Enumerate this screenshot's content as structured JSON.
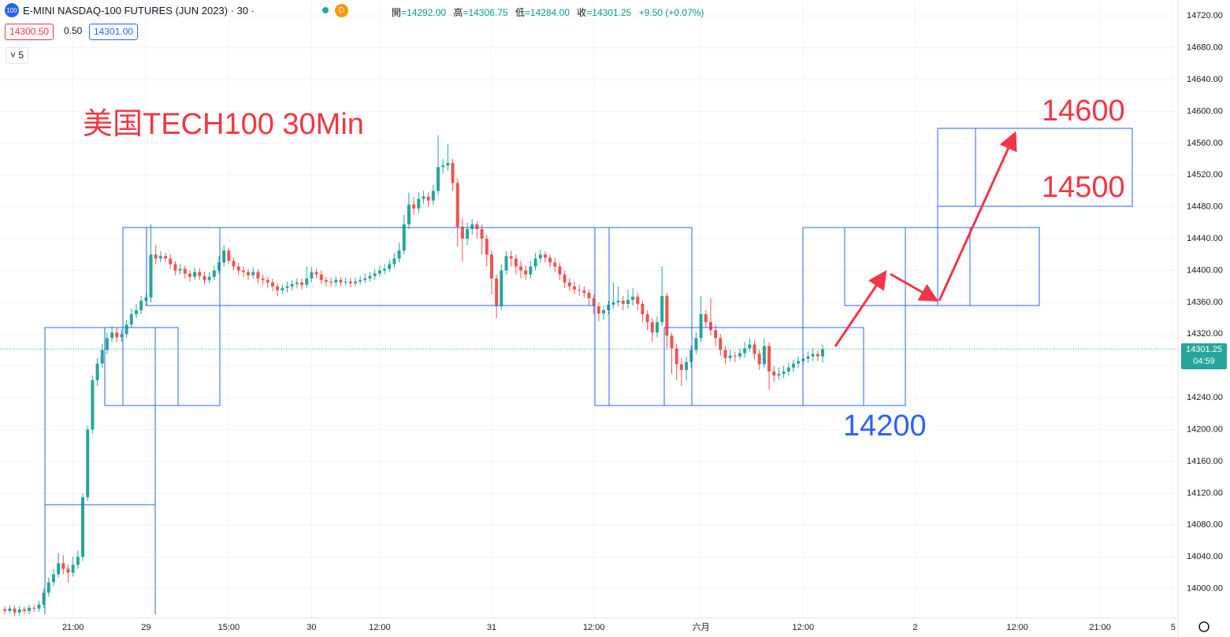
{
  "toolbar": {
    "symbol_badge": "100",
    "title": "E-MINI NASDAQ-100 FUTURES (JUN 2023) · 30 ·",
    "badge": "D",
    "ohlc": [
      {
        "label": "開",
        "value": "=14292.00"
      },
      {
        "label": "高",
        "value": "=14306.75"
      },
      {
        "label": "低",
        "value": "=14284.00"
      },
      {
        "label": "收",
        "value": "=14301.25"
      }
    ],
    "change": "+9.50 (+0.07%)",
    "bid": "14300.50",
    "spread": "0.50",
    "ask": "14301.00",
    "indicators": "5"
  },
  "chart_data": {
    "type": "candlestick",
    "annotations": [
      {
        "text": "美国TECH100 30Min",
        "color": "#f23645"
      },
      {
        "text": "14600",
        "color": "#f23645"
      },
      {
        "text": "14500",
        "color": "#f23645"
      },
      {
        "text": "14200",
        "color": "#2962ff"
      }
    ],
    "up_color": "#26a69a",
    "down_color": "#ef5350",
    "grid": true,
    "xlim": [
      -1,
      241
    ],
    "ylim": [
      13963,
      14740
    ],
    "xticks": [
      {
        "value": 14,
        "label": "21:00"
      },
      {
        "value": 29,
        "label": "29"
      },
      {
        "value": 46,
        "label": "15:00"
      },
      {
        "value": 63,
        "label": "30"
      },
      {
        "value": 77,
        "label": "12:00"
      },
      {
        "value": 100,
        "label": "31"
      },
      {
        "value": 121,
        "label": "12:00"
      },
      {
        "value": 143,
        "label": "六月"
      },
      {
        "value": 164,
        "label": "12:00"
      },
      {
        "value": 187,
        "label": "2"
      },
      {
        "value": 208,
        "label": "12:00"
      },
      {
        "value": 225,
        "label": "21:00"
      },
      {
        "value": 240,
        "label": "5"
      }
    ],
    "yticks": [
      {
        "value": 14000,
        "label": "14000.00"
      },
      {
        "value": 14040,
        "label": "14040.00"
      },
      {
        "value": 14080,
        "label": "14080.00"
      },
      {
        "value": 14120,
        "label": "14120.00"
      },
      {
        "value": 14160,
        "label": "14160.00"
      },
      {
        "value": 14200,
        "label": "14200.00"
      },
      {
        "value": 14240,
        "label": "14240.00"
      },
      {
        "value": 14280,
        "label": "14280.00"
      },
      {
        "value": 14320,
        "label": "14320.00"
      },
      {
        "value": 14360,
        "label": "14360.00"
      },
      {
        "value": 14400,
        "label": "14400.00"
      },
      {
        "value": 14440,
        "label": "14440.00"
      },
      {
        "value": 14480,
        "label": "14480.00"
      },
      {
        "value": 14520,
        "label": "14520.00"
      },
      {
        "value": 14560,
        "label": "14560.00"
      },
      {
        "value": 14600,
        "label": "14600.00"
      },
      {
        "value": 14640,
        "label": "14640.00"
      },
      {
        "value": 14680,
        "label": "14680.00"
      },
      {
        "value": 14720,
        "label": "14720.00"
      }
    ],
    "last_price": 14301.25,
    "countdown": "04:59",
    "open": [
      13974,
      13972,
      13975,
      13970,
      13974,
      13972,
      13976,
      13975,
      13980,
      13995,
      14008,
      14018,
      14032,
      14025,
      14020,
      14030,
      14040,
      14115,
      14200,
      14262,
      14283,
      14300,
      14315,
      14322,
      14316,
      14320,
      14332,
      14345,
      14350,
      14362,
      14366,
      14420,
      14415,
      14418,
      14415,
      14408,
      14400,
      14402,
      14396,
      14392,
      14398,
      14393,
      14388,
      14392,
      14400,
      14410,
      14425,
      14412,
      14405,
      14400,
      14398,
      14394,
      14398,
      14390,
      14388,
      14385,
      14380,
      14375,
      14378,
      14380,
      14383,
      14385,
      14382,
      14390,
      14398,
      14395,
      14388,
      14386,
      14385,
      14388,
      14385,
      14386,
      14384,
      14386,
      14388,
      14390,
      14393,
      14396,
      14400,
      14402,
      14408,
      14415,
      14425,
      14458,
      14483,
      14478,
      14490,
      14493,
      14488,
      14500,
      14530,
      14532,
      14535,
      14510,
      14455,
      14440,
      14452,
      14458,
      14452,
      14440,
      14420,
      14390,
      14355,
      14400,
      14418,
      14415,
      14405,
      14400,
      14395,
      14405,
      14415,
      14420,
      14416,
      14410,
      14405,
      14395,
      14385,
      14380,
      14376,
      14375,
      14372,
      14365,
      14355,
      14346,
      14350,
      14357,
      14360,
      14362,
      14358,
      14363,
      14367,
      14358,
      14345,
      14335,
      14322,
      14335,
      14368,
      14318,
      14302,
      14282,
      14275,
      14285,
      14300,
      14315,
      14345,
      14335,
      14325,
      14315,
      14300,
      14290,
      14293,
      14292,
      14296,
      14302,
      14307,
      14295,
      14282,
      14305,
      14273,
      14268,
      14270,
      14273,
      14278,
      14283,
      14286,
      14289,
      14292,
      14295,
      14292
    ],
    "high": [
      13978,
      13979,
      13979,
      13978,
      13977,
      13980,
      13980,
      13985,
      14000,
      14014,
      14025,
      14045,
      14042,
      14030,
      14040,
      14048,
      14120,
      14205,
      14268,
      14290,
      14308,
      14322,
      14330,
      14328,
      14326,
      14338,
      14352,
      14358,
      14368,
      14372,
      14458,
      14432,
      14424,
      14422,
      14420,
      14412,
      14408,
      14406,
      14400,
      14404,
      14403,
      14398,
      14398,
      14406,
      14418,
      14432,
      14428,
      14416,
      14410,
      14405,
      14402,
      14404,
      14402,
      14395,
      14392,
      14390,
      14384,
      14383,
      14386,
      14388,
      14390,
      14390,
      14405,
      14404,
      14402,
      14400,
      14392,
      14391,
      14393,
      14392,
      14391,
      14390,
      14391,
      14393,
      14396,
      14398,
      14402,
      14406,
      14408,
      14414,
      14422,
      14435,
      14470,
      14498,
      14492,
      14498,
      14500,
      14498,
      14508,
      14570,
      14540,
      14559,
      14540,
      14515,
      14465,
      14460,
      14465,
      14462,
      14458,
      14445,
      14425,
      14395,
      14408,
      14424,
      14425,
      14420,
      14412,
      14406,
      14412,
      14422,
      14426,
      14424,
      14420,
      14416,
      14410,
      14400,
      14390,
      14386,
      14382,
      14380,
      14376,
      14370,
      14360,
      14356,
      14362,
      14385,
      14380,
      14368,
      14376,
      14378,
      14372,
      14362,
      14350,
      14340,
      14342,
      14405,
      14372,
      14322,
      14308,
      14290,
      14292,
      14306,
      14322,
      14368,
      14350,
      14365,
      14332,
      14320,
      14305,
      14300,
      14298,
      14302,
      14310,
      14315,
      14312,
      14300,
      14315,
      14310,
      14280,
      14278,
      14280,
      14284,
      14288,
      14292,
      14294,
      14298,
      14302,
      14300,
      14306.75
    ],
    "low": [
      13968,
      13969,
      13966,
      13966,
      13968,
      13968,
      13971,
      13971,
      13976,
      13990,
      14003,
      14014,
      14018,
      14008,
      14015,
      14025,
      14035,
      14110,
      14195,
      14255,
      14278,
      14295,
      14310,
      14310,
      14310,
      14315,
      14328,
      14340,
      14345,
      14355,
      14360,
      14408,
      14410,
      14410,
      14402,
      14394,
      14395,
      14390,
      14386,
      14388,
      14388,
      14382,
      14384,
      14388,
      14396,
      14405,
      14408,
      14400,
      14394,
      14392,
      14388,
      14390,
      14384,
      14382,
      14378,
      14374,
      14368,
      14370,
      14372,
      14375,
      14378,
      14376,
      14378,
      14385,
      14390,
      14383,
      14380,
      14380,
      14380,
      14380,
      14381,
      14379,
      14380,
      14382,
      14384,
      14386,
      14388,
      14392,
      14395,
      14398,
      14403,
      14410,
      14420,
      14452,
      14470,
      14472,
      14484,
      14480,
      14482,
      14495,
      14522,
      14525,
      14500,
      14430,
      14412,
      14432,
      14445,
      14440,
      14420,
      14405,
      14370,
      14340,
      14350,
      14395,
      14405,
      14395,
      14390,
      14388,
      14390,
      14400,
      14410,
      14410,
      14404,
      14398,
      14388,
      14378,
      14374,
      14370,
      14368,
      14366,
      14356,
      14345,
      14336,
      14338,
      14345,
      14352,
      14355,
      14350,
      14352,
      14356,
      14350,
      14335,
      14325,
      14310,
      14316,
      14330,
      14300,
      14270,
      14262,
      14255,
      14262,
      14278,
      14295,
      14310,
      14328,
      14318,
      14305,
      14292,
      14282,
      14286,
      14285,
      14288,
      14290,
      14298,
      14288,
      14275,
      14278,
      14250,
      14260,
      14262,
      14265,
      14268,
      14272,
      14278,
      14280,
      14284,
      14286,
      14286,
      14284
    ],
    "close": [
      13972,
      13975,
      13970,
      13974,
      13972,
      13976,
      13975,
      13980,
      13995,
      14008,
      14018,
      14032,
      14025,
      14020,
      14030,
      14040,
      14115,
      14200,
      14262,
      14283,
      14300,
      14315,
      14322,
      14316,
      14320,
      14332,
      14345,
      14350,
      14362,
      14366,
      14420,
      14415,
      14418,
      14415,
      14408,
      14400,
      14402,
      14396,
      14392,
      14398,
      14393,
      14388,
      14392,
      14400,
      14410,
      14425,
      14412,
      14405,
      14400,
      14398,
      14394,
      14398,
      14390,
      14388,
      14385,
      14380,
      14375,
      14378,
      14380,
      14383,
      14385,
      14382,
      14390,
      14398,
      14395,
      14388,
      14386,
      14385,
      14388,
      14385,
      14386,
      14384,
      14386,
      14388,
      14390,
      14393,
      14396,
      14400,
      14402,
      14408,
      14415,
      14425,
      14458,
      14483,
      14478,
      14490,
      14493,
      14488,
      14500,
      14530,
      14532,
      14535,
      14510,
      14455,
      14440,
      14452,
      14458,
      14452,
      14440,
      14420,
      14390,
      14355,
      14400,
      14418,
      14415,
      14405,
      14400,
      14395,
      14405,
      14415,
      14420,
      14416,
      14410,
      14405,
      14395,
      14385,
      14380,
      14376,
      14375,
      14372,
      14365,
      14355,
      14346,
      14350,
      14357,
      14360,
      14362,
      14358,
      14363,
      14367,
      14358,
      14345,
      14335,
      14322,
      14335,
      14368,
      14318,
      14302,
      14282,
      14275,
      14285,
      14300,
      14315,
      14345,
      14335,
      14325,
      14315,
      14300,
      14290,
      14293,
      14292,
      14296,
      14302,
      14307,
      14295,
      14282,
      14305,
      14273,
      14268,
      14270,
      14273,
      14278,
      14283,
      14286,
      14289,
      14292,
      14295,
      14292,
      14301.25
    ]
  }
}
